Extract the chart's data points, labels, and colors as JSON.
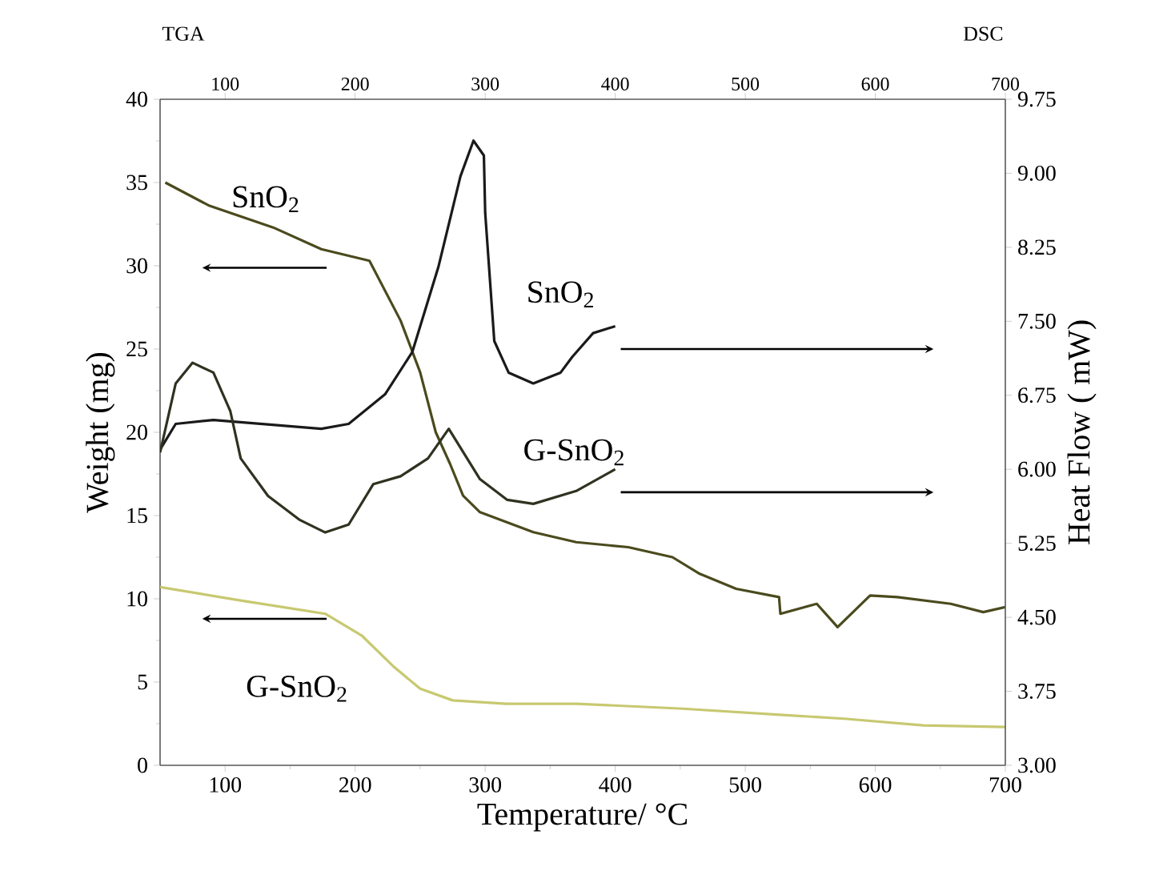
{
  "chart_data": {
    "type": "line",
    "xlabel": "Temperature/ °C",
    "ylabel": "Weight (mg)",
    "y2label": "Heat Flow ( mW)",
    "annotations": [
      "TGA",
      "DSC"
    ],
    "xlim": [
      50,
      700
    ],
    "xticks": [
      100,
      200,
      300,
      400,
      500,
      600,
      700
    ],
    "x2lim": [
      50,
      700
    ],
    "x2ticks": [
      100,
      200,
      300,
      400,
      500,
      600,
      700
    ],
    "ylim": [
      0,
      40
    ],
    "yticks": [
      0,
      5,
      10,
      15,
      20,
      25,
      30,
      35,
      40
    ],
    "y2lim": [
      3,
      9.75
    ],
    "y2ticks": [
      {
        "value": 3,
        "label": "3.00"
      },
      {
        "value": 3.75,
        "label": "3.75"
      },
      {
        "value": 4.5,
        "label": "4.50"
      },
      {
        "value": 5.25,
        "label": "5.25"
      },
      {
        "value": 6,
        "label": "6.00"
      },
      {
        "value": 6.75,
        "label": "6.75"
      },
      {
        "value": 7.5,
        "label": "7.50"
      },
      {
        "value": 8.25,
        "label": "8.25"
      },
      {
        "value": 9,
        "label": "9.00"
      },
      {
        "value": 9.75,
        "label": "9.75"
      }
    ],
    "series": [
      {
        "name": "SnO$_{2}$",
        "color": "#4a4a1e",
        "x": [
          54,
          88,
          137,
          174,
          211,
          235,
          250,
          262,
          273,
          283,
          296,
          337,
          370,
          410,
          444,
          465,
          493,
          526,
          527,
          555,
          571,
          596,
          617,
          658,
          683,
          700
        ],
        "values": [
          35,
          33.6,
          32.3,
          31,
          30.3,
          26.7,
          23.6,
          20,
          18.1,
          16.2,
          15.2,
          14,
          13.4,
          13.1,
          12.5,
          11.5,
          10.6,
          10.1,
          9.1,
          9.7,
          8.3,
          10.2,
          10.1,
          9.7,
          9.2,
          9.5
        ]
      },
      {
        "name": "G-SnO$_{2}$",
        "color": "#c8c870",
        "x": [
          50,
          112,
          177,
          205,
          230,
          250,
          275,
          316,
          370,
          452,
          534,
          576,
          637,
          700
        ],
        "values": [
          10.7,
          9.9,
          9.1,
          7.8,
          5.9,
          4.6,
          3.9,
          3.7,
          3.7,
          3.4,
          3.0,
          2.8,
          2.4,
          2.3
        ]
      },
      {
        "name": "SnO$_{2}$",
        "color": "#1a1a1a",
        "axis": "y2",
        "x": [
          50,
          62,
          91,
          174,
          195,
          223,
          244,
          264,
          281,
          291,
          299,
          300,
          307,
          318,
          337,
          358,
          367,
          383,
          400
        ],
        "values": [
          6.2,
          6.46,
          6.5,
          6.41,
          6.46,
          6.76,
          7.19,
          8.05,
          8.97,
          9.33,
          9.18,
          8.6,
          7.3,
          6.98,
          6.87,
          6.98,
          7.14,
          7.38,
          7.45
        ]
      },
      {
        "name": "G-SnO$_{2}$",
        "color": "#2e3320",
        "axis": "y2",
        "x": [
          50,
          62,
          75,
          91,
          104,
          112,
          133,
          157,
          177,
          195,
          214,
          235,
          256,
          272,
          296,
          317,
          337,
          370,
          400
        ],
        "values": [
          6.17,
          6.87,
          7.08,
          6.98,
          6.59,
          6.11,
          5.73,
          5.49,
          5.36,
          5.44,
          5.85,
          5.93,
          6.11,
          6.41,
          5.9,
          5.69,
          5.65,
          5.78,
          6.0
        ]
      }
    ]
  }
}
